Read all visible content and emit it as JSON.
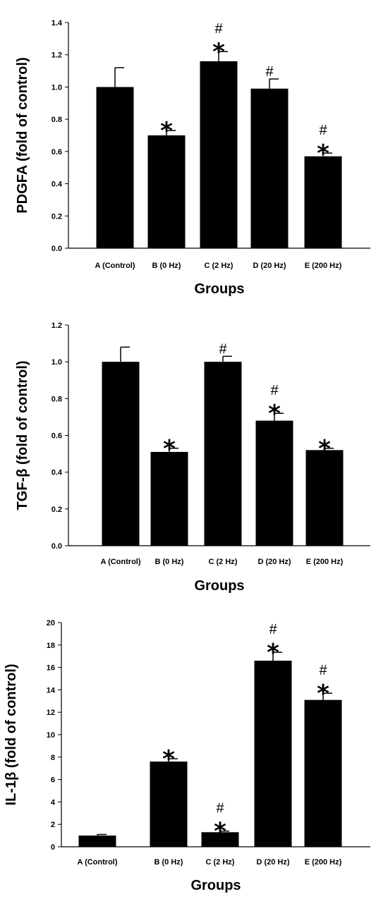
{
  "colors": {
    "bar": "#000000",
    "axis": "#000000",
    "background": "#ffffff"
  },
  "chart_data": [
    {
      "type": "bar",
      "title": "",
      "xlabel": "Groups",
      "ylabel": "PDGFA (fold of control)",
      "ylim": [
        0,
        1.4
      ],
      "yticks": [
        "0.0",
        "0.2",
        "0.4",
        "0.6",
        "0.8",
        "1.0",
        "1.2",
        "1.4"
      ],
      "categories": [
        "A (Control)",
        "B (0 Hz)",
        "C (2 Hz)",
        "D (20 Hz)",
        "E (200 Hz)"
      ],
      "values": [
        1.0,
        0.7,
        1.16,
        0.99,
        0.57
      ],
      "errors": [
        0.12,
        0.03,
        0.06,
        0.06,
        0.02
      ],
      "annotations": [
        [],
        [
          "*"
        ],
        [
          "#",
          "*"
        ],
        [
          "#"
        ],
        [
          "#",
          "*"
        ]
      ],
      "grid": false
    },
    {
      "type": "bar",
      "title": "",
      "xlabel": "Groups",
      "ylabel": "TGF-β (fold of control)",
      "ylim": [
        0,
        1.2
      ],
      "yticks": [
        "0.0",
        "0.2",
        "0.4",
        "0.6",
        "0.8",
        "1.0",
        "1.2"
      ],
      "categories": [
        "A (Control)",
        "B (0 Hz)",
        "C (2 Hz)",
        "D (20 Hz)",
        "E (200 Hz)"
      ],
      "values": [
        1.0,
        0.51,
        1.0,
        0.68,
        0.52
      ],
      "errors": [
        0.08,
        0.02,
        0.03,
        0.04,
        0.01
      ],
      "annotations": [
        [],
        [
          "*"
        ],
        [
          "#"
        ],
        [
          "#",
          "*"
        ],
        [
          "*"
        ]
      ],
      "grid": false
    },
    {
      "type": "bar",
      "title": "",
      "xlabel": "Groups",
      "ylabel": "IL-1β (fold of control)",
      "ylim": [
        0,
        20
      ],
      "yticks": [
        "0",
        "2",
        "4",
        "6",
        "8",
        "10",
        "12",
        "14",
        "16",
        "18",
        "20"
      ],
      "categories": [
        "A (Control)",
        "B (0 Hz)",
        "C (2 Hz)",
        "D (20 Hz)",
        "E (200 Hz)"
      ],
      "values": [
        1.0,
        7.6,
        1.3,
        16.6,
        13.1
      ],
      "errors": [
        0.1,
        0.25,
        0.1,
        0.75,
        0.6
      ],
      "annotations": [
        [],
        [
          "*"
        ],
        [
          "#",
          "*"
        ],
        [
          "#",
          "*"
        ],
        [
          "#",
          "*"
        ]
      ],
      "grid": false
    }
  ]
}
